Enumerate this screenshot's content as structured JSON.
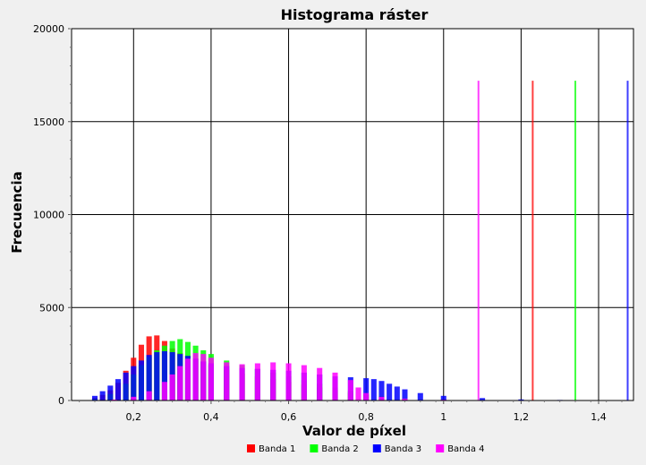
{
  "chart_data": {
    "type": "bar",
    "title": "Histograma ráster",
    "xlabel": "Valor de píxel",
    "ylabel": "Frecuencia",
    "xlim": [
      0.04,
      1.49
    ],
    "ylim": [
      0,
      20000
    ],
    "x_ticks": [
      {
        "value": 0.2,
        "label": "0,2"
      },
      {
        "value": 0.4,
        "label": "0,4"
      },
      {
        "value": 0.6,
        "label": "0,6"
      },
      {
        "value": 0.8,
        "label": "0,8"
      },
      {
        "value": 1.0,
        "label": "1"
      },
      {
        "value": 1.2,
        "label": "1,2"
      },
      {
        "value": 1.4,
        "label": "1,4"
      }
    ],
    "y_ticks": [
      {
        "value": 0,
        "label": "0"
      },
      {
        "value": 5000,
        "label": "5000"
      },
      {
        "value": 10000,
        "label": "10000"
      },
      {
        "value": 15000,
        "label": "15000"
      },
      {
        "value": 20000,
        "label": "20000"
      }
    ],
    "grid": true,
    "legend_position": "bottom",
    "series": [
      {
        "name": "Banda 1",
        "color": "#ff0000",
        "x": [
          0.05,
          0.1,
          0.12,
          0.14,
          0.16,
          0.18,
          0.2,
          0.22,
          0.24,
          0.26,
          0.28,
          0.3,
          0.32,
          0.34,
          0.36,
          0.38,
          0.4,
          0.44,
          0.48,
          0.52,
          0.56,
          0.6,
          0.64,
          0.68,
          0.72,
          0.76,
          0.8,
          0.84,
          0.9,
          1.0,
          1.1,
          1.2,
          1.23
        ],
        "values": [
          20,
          150,
          300,
          550,
          950,
          1600,
          2300,
          3000,
          3450,
          3500,
          3200,
          2800,
          2550,
          2400,
          2250,
          2100,
          1900,
          1650,
          1450,
          1300,
          1150,
          1000,
          850,
          700,
          560,
          420,
          300,
          190,
          90,
          40,
          15,
          10,
          17200
        ]
      },
      {
        "name": "Banda 2",
        "color": "#00ff00",
        "x": [
          0.05,
          0.1,
          0.14,
          0.18,
          0.2,
          0.22,
          0.24,
          0.26,
          0.28,
          0.3,
          0.32,
          0.34,
          0.36,
          0.38,
          0.4,
          0.44,
          0.48,
          0.52,
          0.56,
          0.6,
          0.64,
          0.68,
          0.72,
          0.76,
          0.8,
          0.84,
          0.9,
          1.0,
          1.1,
          1.2,
          1.3,
          1.34
        ],
        "values": [
          10,
          100,
          350,
          900,
          1400,
          1900,
          2350,
          2700,
          2950,
          3200,
          3300,
          3150,
          2950,
          2700,
          2500,
          2150,
          1900,
          1700,
          1500,
          1300,
          1100,
          900,
          700,
          520,
          360,
          230,
          110,
          50,
          20,
          10,
          5,
          17200
        ]
      },
      {
        "name": "Banda 3",
        "color": "#0000ff",
        "x": [
          0.05,
          0.1,
          0.12,
          0.14,
          0.16,
          0.18,
          0.2,
          0.22,
          0.24,
          0.26,
          0.28,
          0.3,
          0.32,
          0.34,
          0.36,
          0.38,
          0.4,
          0.44,
          0.48,
          0.52,
          0.56,
          0.6,
          0.64,
          0.68,
          0.72,
          0.76,
          0.8,
          0.82,
          0.84,
          0.86,
          0.88,
          0.9,
          0.94,
          1.0,
          1.1,
          1.2,
          1.3,
          1.4,
          1.46,
          1.475
        ],
        "values": [
          20,
          250,
          500,
          800,
          1150,
          1500,
          1850,
          2150,
          2450,
          2600,
          2650,
          2600,
          2500,
          2400,
          2250,
          2100,
          2000,
          1850,
          1750,
          1700,
          1650,
          1600,
          1500,
          1400,
          1300,
          1250,
          1200,
          1150,
          1050,
          900,
          750,
          600,
          400,
          250,
          130,
          60,
          30,
          15,
          10,
          17200
        ]
      },
      {
        "name": "Banda 4",
        "color": "#ff00ff",
        "x": [
          0.05,
          0.15,
          0.2,
          0.24,
          0.28,
          0.3,
          0.32,
          0.34,
          0.36,
          0.38,
          0.4,
          0.44,
          0.48,
          0.52,
          0.56,
          0.6,
          0.64,
          0.68,
          0.72,
          0.76,
          0.78,
          0.8,
          0.84,
          0.9,
          1.0,
          1.06,
          1.09
        ],
        "values": [
          5,
          50,
          200,
          500,
          1000,
          1400,
          1850,
          2250,
          2550,
          2500,
          2300,
          2050,
          1950,
          2000,
          2050,
          2000,
          1900,
          1750,
          1500,
          1100,
          700,
          400,
          200,
          100,
          40,
          20,
          17200
        ]
      }
    ]
  }
}
